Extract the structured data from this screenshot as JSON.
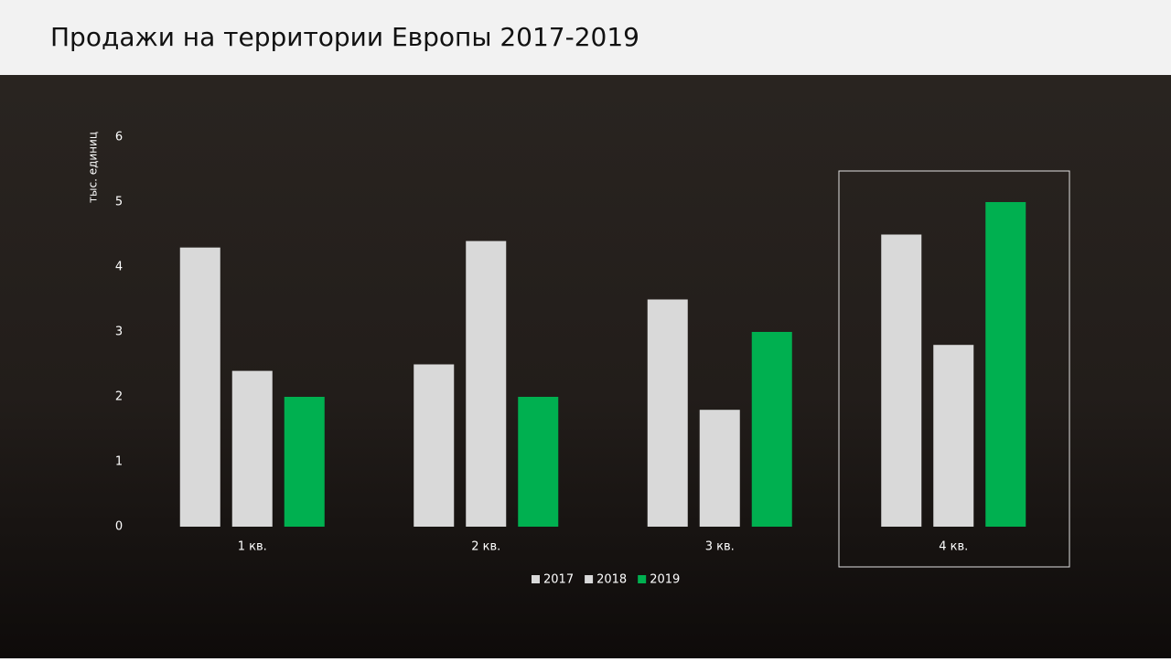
{
  "chart_data": {
    "type": "bar",
    "title": "Продажи на территории Европы  2017-2019",
    "y_label": "тыс. единиц",
    "categories": [
      "1 кв.",
      "2 кв.",
      "3 кв.",
      "4 кв."
    ],
    "series": [
      {
        "name": "2017",
        "color": "#d9d9d9",
        "values": [
          4.3,
          2.5,
          3.5,
          4.5
        ]
      },
      {
        "name": "2018",
        "color": "#d9d9d9",
        "values": [
          2.4,
          4.4,
          1.8,
          2.8
        ]
      },
      {
        "name": "2019",
        "color": "#00b050",
        "values": [
          2.0,
          2.0,
          3.0,
          5.0
        ]
      }
    ],
    "ylim": [
      0,
      6
    ],
    "yticks": [
      0,
      1,
      2,
      3,
      4,
      5,
      6
    ],
    "grid": false,
    "legend": "bottom"
  }
}
